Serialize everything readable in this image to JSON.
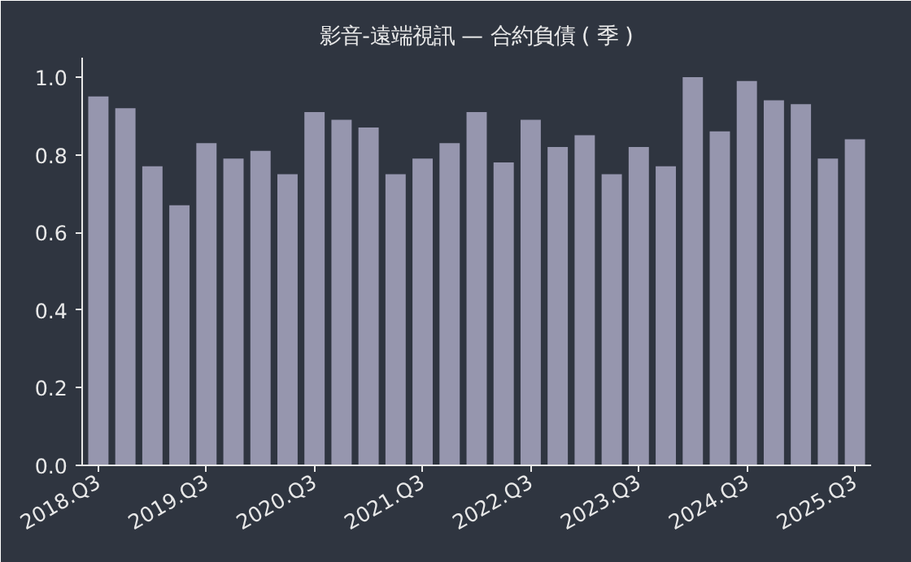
{
  "chart_data": {
    "type": "bar",
    "title": "影音-遠端視訊 — 合約負債 ( 季 )",
    "categories": [
      "2018.Q3",
      null,
      null,
      null,
      "2019.Q3",
      null,
      null,
      null,
      "2020.Q3",
      null,
      null,
      null,
      "2021.Q3",
      null,
      null,
      null,
      "2022.Q3",
      null,
      null,
      null,
      "2023.Q3",
      null,
      null,
      null,
      "2024.Q3",
      null,
      null,
      null,
      "2025.Q3"
    ],
    "values": [
      0.95,
      0.92,
      0.77,
      0.67,
      0.83,
      0.79,
      0.81,
      0.75,
      0.91,
      0.89,
      0.87,
      0.75,
      0.79,
      0.83,
      0.91,
      0.78,
      0.89,
      0.82,
      0.85,
      0.75,
      0.82,
      0.77,
      1.0,
      0.86,
      0.99,
      0.94,
      0.93,
      0.79,
      0.84
    ],
    "color": "#9696ae",
    "ylim": [
      0,
      1.05
    ],
    "yticks": [
      {
        "value": 0,
        "label": "0.0"
      },
      {
        "value": 0.2,
        "label": "0.2"
      },
      {
        "value": 0.4,
        "label": "0.4"
      },
      {
        "value": 0.6,
        "label": "0.6"
      },
      {
        "value": 0.8,
        "label": "0.8"
      },
      {
        "value": 1.0,
        "label": "1.0"
      }
    ],
    "grid": false
  }
}
